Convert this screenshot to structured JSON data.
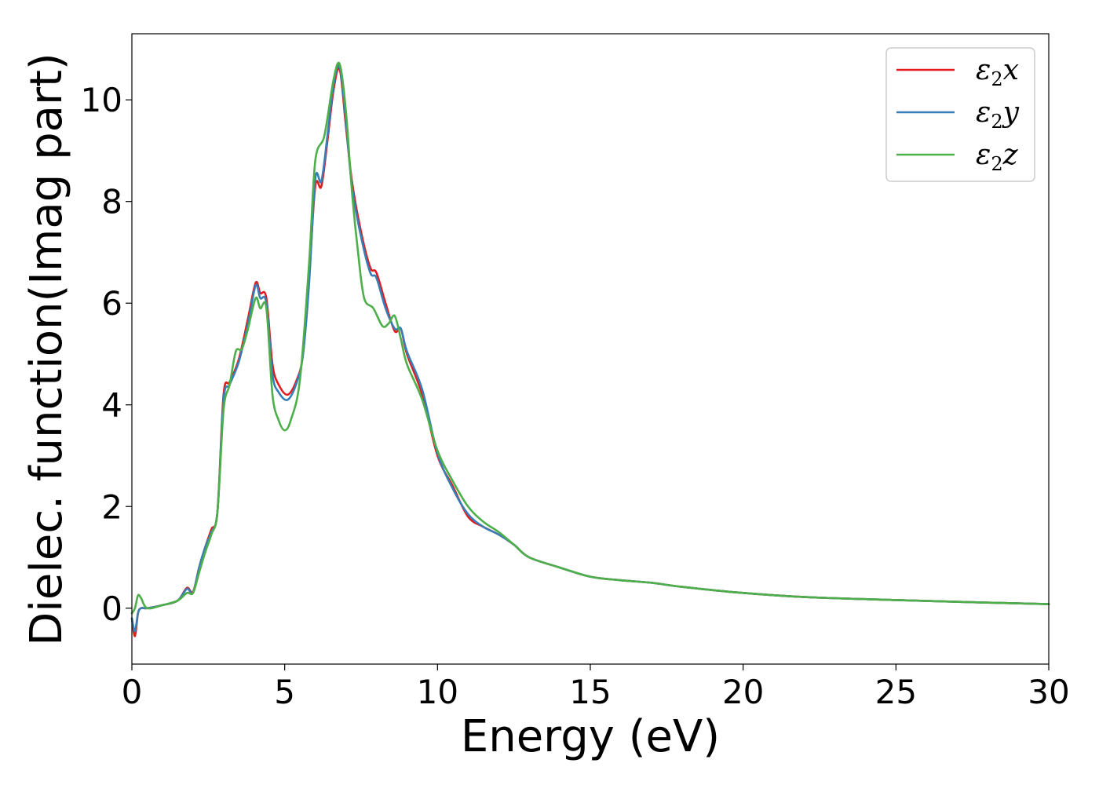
{
  "chart_data": {
    "type": "line",
    "title": "",
    "xlabel": "Energy (eV)",
    "ylabel": "Dielec. function(Imag part)",
    "xlim": [
      0,
      30
    ],
    "ylim": [
      -1.1,
      11.3
    ],
    "xticks": [
      0,
      5,
      10,
      15,
      20,
      25,
      30
    ],
    "yticks": [
      0,
      2,
      4,
      6,
      8,
      10
    ],
    "grid": false,
    "legend_position": "top-right",
    "series": [
      {
        "name": "ε2x",
        "name_base": "ε",
        "name_sub": "2",
        "name_axis": "x",
        "color": "#e41a1c",
        "x": [
          0,
          0.1,
          0.2,
          0.3,
          0.5,
          1,
          1.5,
          1.8,
          2,
          2.2,
          2.4,
          2.6,
          2.8,
          3,
          3.2,
          3.5,
          3.8,
          4.05,
          4.2,
          4.4,
          4.6,
          4.8,
          5.1,
          5.4,
          5.6,
          5.8,
          6.0,
          6.2,
          6.4,
          6.6,
          6.8,
          7.0,
          7.2,
          7.5,
          7.8,
          8.0,
          8.3,
          8.6,
          8.8,
          9.0,
          9.5,
          10,
          10.5,
          11,
          11.5,
          12,
          12.5,
          13,
          14,
          15,
          16,
          17,
          18,
          20,
          22,
          25,
          28,
          30
        ],
        "y": [
          -0.2,
          -0.55,
          -0.1,
          0.0,
          0.0,
          0.06,
          0.15,
          0.4,
          0.32,
          0.8,
          1.2,
          1.55,
          1.9,
          4.2,
          4.45,
          4.9,
          5.7,
          6.4,
          6.2,
          6.1,
          4.8,
          4.4,
          4.2,
          4.5,
          5.0,
          6.5,
          8.3,
          8.3,
          9.2,
          10.2,
          10.6,
          9.5,
          8.4,
          7.4,
          6.7,
          6.6,
          6.0,
          5.45,
          5.5,
          5.0,
          4.2,
          3.0,
          2.4,
          1.8,
          1.6,
          1.45,
          1.25,
          1.0,
          0.8,
          0.62,
          0.55,
          0.5,
          0.42,
          0.3,
          0.22,
          0.16,
          0.11,
          0.08
        ]
      },
      {
        "name": "ε2y",
        "name_base": "ε",
        "name_sub": "2",
        "name_axis": "y",
        "color": "#377eb8",
        "x": [
          0,
          0.1,
          0.2,
          0.3,
          0.5,
          1,
          1.5,
          1.8,
          2,
          2.2,
          2.4,
          2.6,
          2.8,
          3,
          3.2,
          3.5,
          3.8,
          4.05,
          4.2,
          4.4,
          4.6,
          4.8,
          5.1,
          5.4,
          5.6,
          5.8,
          6.0,
          6.2,
          6.4,
          6.6,
          6.8,
          7.0,
          7.2,
          7.5,
          7.8,
          8.0,
          8.3,
          8.6,
          8.8,
          9.0,
          9.5,
          10,
          10.5,
          11,
          11.5,
          12,
          12.5,
          13,
          14,
          15,
          16,
          17,
          18,
          20,
          22,
          25,
          28,
          30
        ],
        "y": [
          -0.2,
          -0.45,
          -0.1,
          0.0,
          0.0,
          0.06,
          0.15,
          0.38,
          0.3,
          0.8,
          1.2,
          1.5,
          1.9,
          4.1,
          4.4,
          4.85,
          5.6,
          6.35,
          6.1,
          6.0,
          4.6,
          4.25,
          4.1,
          4.45,
          5.0,
          6.4,
          8.45,
          8.4,
          9.3,
          10.3,
          10.65,
          9.6,
          8.3,
          7.3,
          6.6,
          6.5,
          5.9,
          5.5,
          5.5,
          5.05,
          4.3,
          3.05,
          2.35,
          1.85,
          1.6,
          1.45,
          1.25,
          1.0,
          0.8,
          0.62,
          0.55,
          0.5,
          0.42,
          0.3,
          0.22,
          0.16,
          0.11,
          0.08
        ]
      },
      {
        "name": "ε2z",
        "name_base": "ε",
        "name_sub": "2",
        "name_axis": "z",
        "color": "#4daf4a",
        "x": [
          0,
          0.1,
          0.2,
          0.3,
          0.5,
          1,
          1.5,
          1.8,
          2,
          2.2,
          2.4,
          2.6,
          2.8,
          3,
          3.2,
          3.4,
          3.6,
          3.8,
          4.05,
          4.2,
          4.4,
          4.6,
          4.8,
          5.0,
          5.2,
          5.5,
          5.8,
          6.0,
          6.3,
          6.6,
          6.8,
          7.0,
          7.2,
          7.4,
          7.6,
          7.9,
          8.2,
          8.4,
          8.6,
          8.8,
          9.0,
          9.5,
          10,
          10.5,
          11,
          11.5,
          12,
          12.5,
          13,
          14,
          15,
          16,
          17,
          18,
          20,
          22,
          25,
          28,
          30
        ],
        "y": [
          -0.1,
          0.0,
          0.25,
          0.2,
          0.0,
          0.06,
          0.15,
          0.3,
          0.3,
          0.7,
          1.1,
          1.45,
          1.9,
          3.9,
          4.4,
          5.05,
          5.1,
          5.5,
          6.1,
          5.9,
          5.9,
          4.2,
          3.7,
          3.5,
          3.7,
          4.5,
          6.8,
          8.8,
          9.3,
          10.4,
          10.7,
          9.8,
          8.2,
          7.0,
          6.1,
          5.9,
          5.55,
          5.6,
          5.75,
          5.3,
          4.8,
          4.1,
          3.1,
          2.5,
          2.0,
          1.7,
          1.5,
          1.25,
          1.0,
          0.8,
          0.62,
          0.55,
          0.5,
          0.42,
          0.3,
          0.22,
          0.16,
          0.11,
          0.08
        ]
      }
    ]
  }
}
